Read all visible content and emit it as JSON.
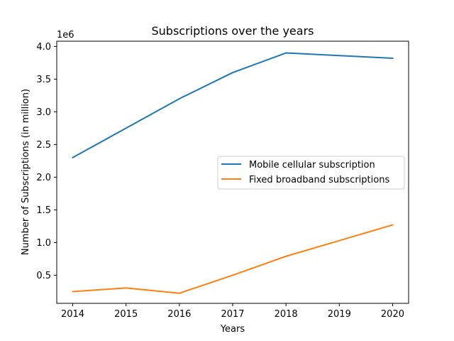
{
  "chart_data": {
    "type": "line",
    "title": "Subscriptions over the years",
    "xlabel": "Years",
    "ylabel": "Number of Subscriptions (in million)",
    "offset_label": "1e6",
    "x": [
      2014,
      2015,
      2016,
      2017,
      2018,
      2019,
      2020
    ],
    "xticks": [
      "2014",
      "2015",
      "2016",
      "2017",
      "2018",
      "2019",
      "2020"
    ],
    "yticks": [
      "0.5",
      "1.0",
      "1.5",
      "2.0",
      "2.5",
      "3.0",
      "3.5",
      "4.0"
    ],
    "ytick_values": [
      500000,
      1000000,
      1500000,
      2000000,
      2500000,
      3000000,
      3500000,
      4000000
    ],
    "xlim": [
      2013.7,
      2020.3
    ],
    "ylim": [
      70000,
      4080000
    ],
    "series": [
      {
        "name": "Mobile cellular subscription",
        "color": "#1f77b4",
        "values": [
          2300000,
          2750000,
          3200000,
          3600000,
          3900000,
          3860000,
          3820000
        ]
      },
      {
        "name": "Fixed broadband subscriptions",
        "color": "#ff7f0e",
        "values": [
          250000,
          305000,
          225000,
          500000,
          790000,
          1030000,
          1270000
        ]
      }
    ],
    "legend": "center-right",
    "grid": false
  }
}
